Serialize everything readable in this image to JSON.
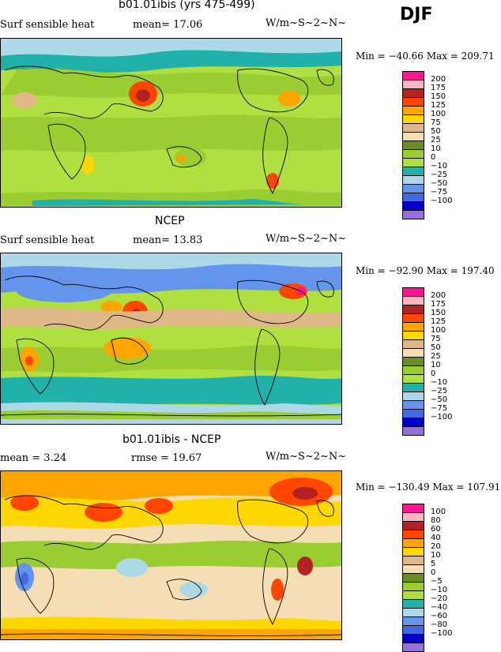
{
  "season": "DJF",
  "panels": [
    {
      "title": "b01.01ibis (yrs 475-499)",
      "left_text": "Surf sensible heat",
      "mid_text": "mean=  17.06",
      "units": "W/m~S~2~N~",
      "minmax": "Min = −40.66 Max = 209.71",
      "legend": {
        "labels": [
          "200",
          "175",
          "150",
          "125",
          "100",
          "75",
          "50",
          "25",
          "10",
          "0",
          "−10",
          "−25",
          "−50",
          "−75",
          "−100"
        ],
        "colors": [
          "#ff1493",
          "#ffb6c1",
          "#b22222",
          "#ff4500",
          "#ffa500",
          "#ffd700",
          "#deb887",
          "#f5deb3",
          "#6b8e23",
          "#9acd32",
          "#b0e040",
          "#20b2aa",
          "#add8e6",
          "#6495ed",
          "#4169e1",
          "#0000cd",
          "#9370db"
        ]
      }
    },
    {
      "title": "NCEP",
      "left_text": "Surf sensible heat",
      "mid_text": "mean=  13.83",
      "units": "W/m~S~2~N~",
      "minmax": "Min = −92.90 Max = 197.40",
      "legend": {
        "labels": [
          "200",
          "175",
          "150",
          "125",
          "100",
          "75",
          "50",
          "25",
          "10",
          "0",
          "−10",
          "−25",
          "−50",
          "−75",
          "−100"
        ],
        "colors": [
          "#ff1493",
          "#ffb6c1",
          "#b22222",
          "#ff4500",
          "#ffa500",
          "#ffd700",
          "#deb887",
          "#f5deb3",
          "#6b8e23",
          "#9acd32",
          "#b0e040",
          "#20b2aa",
          "#add8e6",
          "#6495ed",
          "#4169e1",
          "#0000cd",
          "#9370db"
        ]
      }
    },
    {
      "title": "b01.01ibis - NCEP",
      "left_text": "mean =   3.24",
      "mid_text": "rmse =  19.67",
      "units": "W/m~S~2~N~",
      "minmax": "Min = −130.49 Max = 107.91",
      "legend": {
        "labels": [
          "100",
          "80",
          "60",
          "40",
          "20",
          "10",
          "5",
          "0",
          "−5",
          "−10",
          "−20",
          "−40",
          "−60",
          "−80",
          "−100"
        ],
        "colors": [
          "#ff1493",
          "#ffb6c1",
          "#b22222",
          "#ff4500",
          "#ffa500",
          "#ffd700",
          "#deb887",
          "#f5deb3",
          "#6b8e23",
          "#9acd32",
          "#b0e040",
          "#20b2aa",
          "#add8e6",
          "#6495ed",
          "#4169e1",
          "#0000cd",
          "#9370db"
        ]
      }
    }
  ]
}
